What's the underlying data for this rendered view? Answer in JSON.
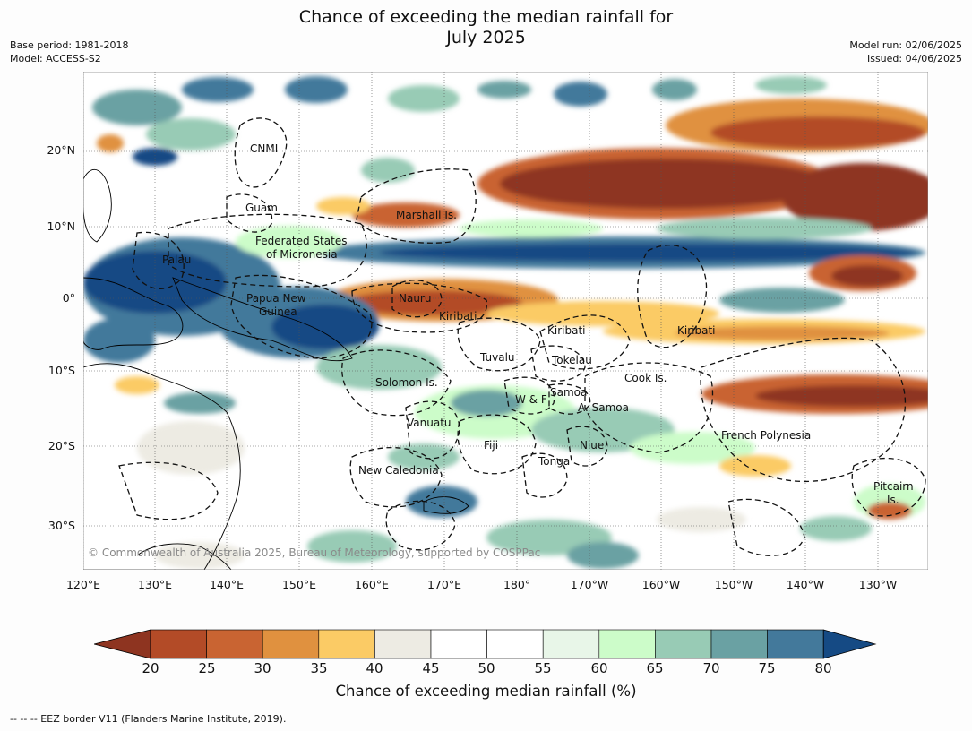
{
  "title_line1": "Chance of exceeding the median rainfall for",
  "title_line2": "July 2025",
  "base_period": "Base period: 1981-2018",
  "model": "Model: ACCESS-S2",
  "model_run": "Model run: 02/06/2025",
  "issued": "Issued: 04/06/2025",
  "lat_ticks": [
    "20°N",
    "10°N",
    "0°",
    "10°S",
    "20°S",
    "30°S"
  ],
  "lon_ticks": [
    "120°E",
    "130°E",
    "140°E",
    "150°E",
    "160°E",
    "170°E",
    "180°",
    "170°W",
    "160°W",
    "150°W",
    "140°W",
    "130°W"
  ],
  "regions": [
    "CNMI",
    "Guam",
    "Marshall Is.",
    "Federated States",
    "of Micronesia",
    "Palau",
    "Nauru",
    "Papua New",
    "Guinea",
    "Kiribati",
    "Kiribati",
    "Kiribati",
    "Tuvalu",
    "Tokelau",
    "Cook Is.",
    "Solomon Is.",
    "W & F",
    "Samoa",
    "A. Samoa",
    "Vanuatu",
    "Fiji",
    "Niue",
    "French Polynesia",
    "Tonga",
    "New Caledonia",
    "Pitcairn",
    "Is."
  ],
  "copyright": "© Commonwealth of Australia 2025, Bureau of Meteorology, supported by COSPPac",
  "colorbar": {
    "ticks": [
      "20",
      "25",
      "30",
      "35",
      "40",
      "45",
      "50",
      "55",
      "60",
      "65",
      "70",
      "75",
      "80"
    ],
    "colors": [
      "#8e3420",
      "#b34b27",
      "#c96432",
      "#e0913f",
      "#fbcb65",
      "#edebe3",
      "#ffffff",
      "#ffffff",
      "#e8f6e8",
      "#ccfcc9",
      "#98cbb5",
      "#6aa1a3",
      "#43799b",
      "#154a84"
    ],
    "label": "Chance of exceeding median rainfall (%)"
  },
  "footnote": "--  --  -- EEZ border V11 (Flanders Marine Institute, 2019)."
}
